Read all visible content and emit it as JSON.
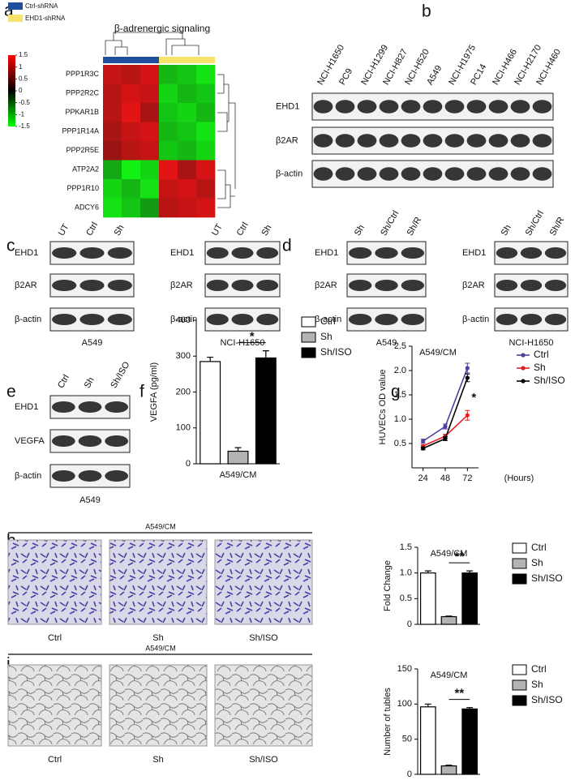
{
  "chart_data": [
    {
      "type": "heatmap",
      "label": "a",
      "title": "β-adrenergic signaling",
      "series": [
        {
          "name": "Ctrl-shRNA",
          "color": "#1f4e9e"
        },
        {
          "name": "EHD1-shRNA",
          "color": "#f7e46b"
        }
      ],
      "rows": [
        "PPP1R3C",
        "PPP2R2C",
        "PPKAR1B",
        "PPP1R14A",
        "PPP2R5E",
        "ATP2A2",
        "PPP1R10",
        "ADCY6"
      ],
      "values": [
        [
          1.1,
          1.0,
          1.2,
          -1.0,
          -1.1,
          -1.3
        ],
        [
          1.0,
          1.2,
          1.1,
          -1.2,
          -1.0,
          -1.1
        ],
        [
          1.0,
          1.3,
          0.9,
          -1.1,
          -1.2,
          -1.0
        ],
        [
          0.9,
          1.1,
          1.2,
          -1.0,
          -1.1,
          -1.3
        ],
        [
          0.8,
          1.0,
          1.1,
          -1.1,
          -1.0,
          -1.2
        ],
        [
          -0.9,
          -1.4,
          -1.2,
          1.3,
          0.9,
          1.2
        ],
        [
          -1.2,
          -1.0,
          -1.3,
          1.1,
          1.2,
          1.0
        ],
        [
          -1.3,
          -1.1,
          -0.8,
          1.0,
          1.1,
          1.2
        ]
      ],
      "zlim": [
        -1.5,
        1.5
      ],
      "zticks": [
        1.5,
        1,
        0.5,
        0,
        -0.5,
        -1,
        -1.5
      ]
    },
    {
      "type": "bar",
      "label": "f",
      "ylabel": "VEGFA (pg/ml)",
      "categories": [
        "A549/CM"
      ],
      "series": [
        {
          "name": "Ctrl",
          "color": "#ffffff",
          "values": [
            285
          ],
          "errors": [
            12
          ]
        },
        {
          "name": "Sh",
          "color": "#b3b3b3",
          "values": [
            35
          ],
          "errors": [
            10
          ]
        },
        {
          "name": "Sh/ISO",
          "color": "#000000",
          "values": [
            295
          ],
          "errors": [
            20
          ]
        }
      ],
      "ylim": [
        0,
        400
      ],
      "yticks": [
        0,
        100,
        200,
        300,
        400
      ],
      "annotations": [
        "*"
      ]
    },
    {
      "type": "line",
      "label": "g",
      "title": "A549/CM",
      "ylabel": "HUVECs OD value",
      "xlabel": "(Hours)",
      "x": [
        24,
        48,
        72
      ],
      "xlim": [
        12,
        84
      ],
      "xticks": [
        24,
        48,
        72
      ],
      "series": [
        {
          "name": "Ctrl",
          "color": "#4b3f9e",
          "values": [
            0.55,
            0.85,
            2.05
          ],
          "errors": [
            0.04,
            0.05,
            0.1
          ]
        },
        {
          "name": "Sh",
          "color": "#e02020",
          "values": [
            0.45,
            0.65,
            1.08
          ],
          "errors": [
            0.03,
            0.04,
            0.1
          ]
        },
        {
          "name": "Sh/ISO",
          "color": "#000000",
          "values": [
            0.4,
            0.6,
            1.85
          ],
          "errors": [
            0.03,
            0.04,
            0.08
          ]
        }
      ],
      "ylim": [
        0,
        2.5
      ],
      "yticks": [
        0.5,
        {
          "value": 1,
          "label": "1.0"
        },
        1.5,
        {
          "value": 2,
          "label": "2.0"
        },
        2.5
      ],
      "annotations": [
        "*"
      ]
    },
    {
      "type": "bar",
      "title": "A549/CM",
      "ylabel": "Fold Change",
      "categories": [
        null
      ],
      "series": [
        {
          "name": "Ctrl",
          "color": "#ffffff",
          "values": [
            1.0
          ],
          "errors": [
            0.04
          ]
        },
        {
          "name": "Sh",
          "color": "#b3b3b3",
          "values": [
            0.15
          ],
          "errors": [
            0.01
          ]
        },
        {
          "name": "Sh/ISO",
          "color": "#000000",
          "values": [
            1.0
          ],
          "errors": [
            0.04
          ]
        }
      ],
      "ylim": [
        0,
        1.5
      ],
      "yticks": [
        0,
        0.5,
        {
          "value": 1,
          "label": "1.0"
        },
        1.5
      ],
      "annotations": [
        "**"
      ]
    },
    {
      "type": "bar",
      "title": "A549/CM",
      "ylabel": "Number of tubles",
      "categories": [
        null
      ],
      "series": [
        {
          "name": "Ctrl",
          "color": "#ffffff",
          "values": [
            96
          ],
          "errors": [
            4
          ]
        },
        {
          "name": "Sh",
          "color": "#b3b3b3",
          "values": [
            12
          ],
          "errors": [
            1
          ]
        },
        {
          "name": "Sh/ISO",
          "color": "#000000",
          "values": [
            93
          ],
          "errors": [
            2
          ]
        }
      ],
      "ylim": [
        0,
        150
      ],
      "yticks": [
        0,
        50,
        100,
        150
      ],
      "annotations": [
        "**"
      ]
    }
  ],
  "blot_panels": [
    {
      "label": "b",
      "blots": [
        {
          "lanes": [
            "NCI-H1650",
            "PC9",
            "NCI-H1299",
            "NCI-H827",
            "NCI-H520",
            "A549",
            "NCI-H1975",
            "PC14",
            "NCI-H466",
            "NCI-H2170",
            "NCI-H460"
          ],
          "rows": [
            "EHD1",
            "β2AR",
            "β-actin"
          ]
        }
      ]
    },
    {
      "label": "c",
      "blots": [
        {
          "lanes": [
            "UT",
            "Ctrl",
            "Sh"
          ],
          "rows": [
            "EHD1",
            "β2AR",
            "β-actin"
          ],
          "caption": "A549"
        },
        {
          "lanes": [
            "UT",
            "Ctrl",
            "Sh"
          ],
          "rows": [
            "EHD1",
            "β2AR",
            "β-actin"
          ],
          "caption": "NCI-H1650"
        }
      ]
    },
    {
      "label": "d",
      "blots": [
        {
          "lanes": [
            "Sh",
            "Sh/Ctrl",
            "Sh/R"
          ],
          "rows": [
            "EHD1",
            "β2AR",
            "β-actin"
          ],
          "caption": "A549"
        },
        {
          "lanes": [
            "Sh",
            "Sh/Ctrl",
            "Sh/R"
          ],
          "rows": [
            "EHD1",
            "β2AR",
            "β-actin"
          ],
          "caption": "NCI-H1650"
        }
      ]
    },
    {
      "label": "e",
      "blots": [
        {
          "lanes": [
            "Ctrl",
            "Sh",
            "Sh/ISO"
          ],
          "rows": [
            "EHD1",
            "VEGFA",
            "β-actin"
          ],
          "caption": "A549"
        }
      ]
    }
  ],
  "image_panels": [
    {
      "label": "h",
      "caption": "A549/CM",
      "images": [
        "Ctrl",
        "Sh",
        "Sh/ISO"
      ]
    },
    {
      "label": "i",
      "caption": "A549/CM",
      "images": [
        "Ctrl",
        "Sh",
        "Sh/ISO"
      ]
    }
  ]
}
